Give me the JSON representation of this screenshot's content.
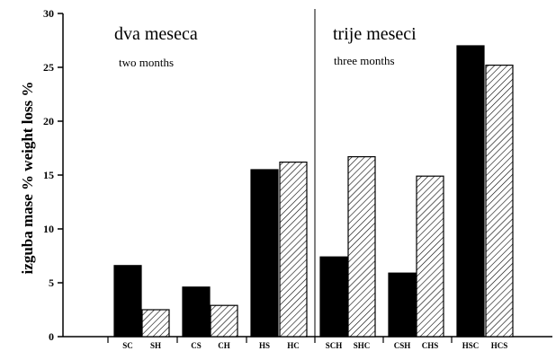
{
  "chart_data": {
    "type": "bar",
    "ylabel": "izguba mase %   weight loss %",
    "ylim": [
      0,
      30
    ],
    "yticks": [
      0,
      5,
      10,
      15,
      20,
      25,
      30
    ],
    "grid": false,
    "panels": [
      {
        "title": "dva meseca",
        "subtitle": "two months"
      },
      {
        "title": "trije meseci",
        "subtitle": "three months"
      }
    ],
    "categories": [
      "SC",
      "SH",
      "CS",
      "CH",
      "HS",
      "HC",
      "SCH",
      "SHC",
      "CSH",
      "CHS",
      "HSC",
      "HCS"
    ],
    "values": [
      6.6,
      2.5,
      4.6,
      2.9,
      15.5,
      16.2,
      7.4,
      16.7,
      5.9,
      14.9,
      27.0,
      25.2
    ],
    "fills": [
      "solid",
      "hatched",
      "solid",
      "hatched",
      "solid",
      "hatched",
      "solid",
      "hatched",
      "solid",
      "hatched",
      "solid",
      "hatched"
    ]
  }
}
